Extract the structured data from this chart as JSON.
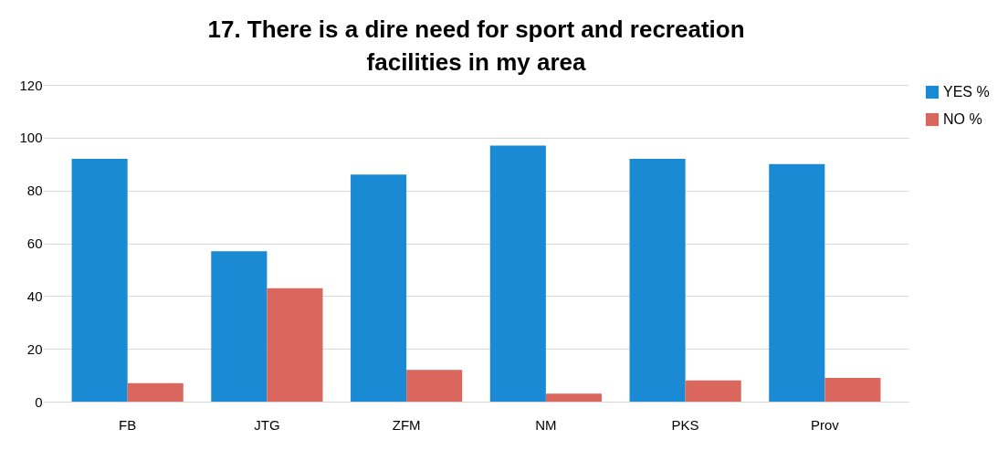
{
  "chart_data": {
    "type": "bar",
    "title": "17. There is a dire need for sport and recreation facilities in my area",
    "categories": [
      "FB",
      "JTG",
      "ZFM",
      "NM",
      "PKS",
      "Prov"
    ],
    "series": [
      {
        "name": "YES %",
        "color": "#1a8ad4",
        "values": [
          92,
          57,
          86,
          97,
          92,
          90
        ]
      },
      {
        "name": "NO %",
        "color": "#d9675e",
        "values": [
          7,
          43,
          12,
          3,
          8,
          9
        ]
      }
    ],
    "ylim": [
      0,
      120
    ],
    "yticks": [
      0,
      20,
      40,
      60,
      80,
      100,
      120
    ],
    "grid": "y",
    "legend": "right"
  }
}
